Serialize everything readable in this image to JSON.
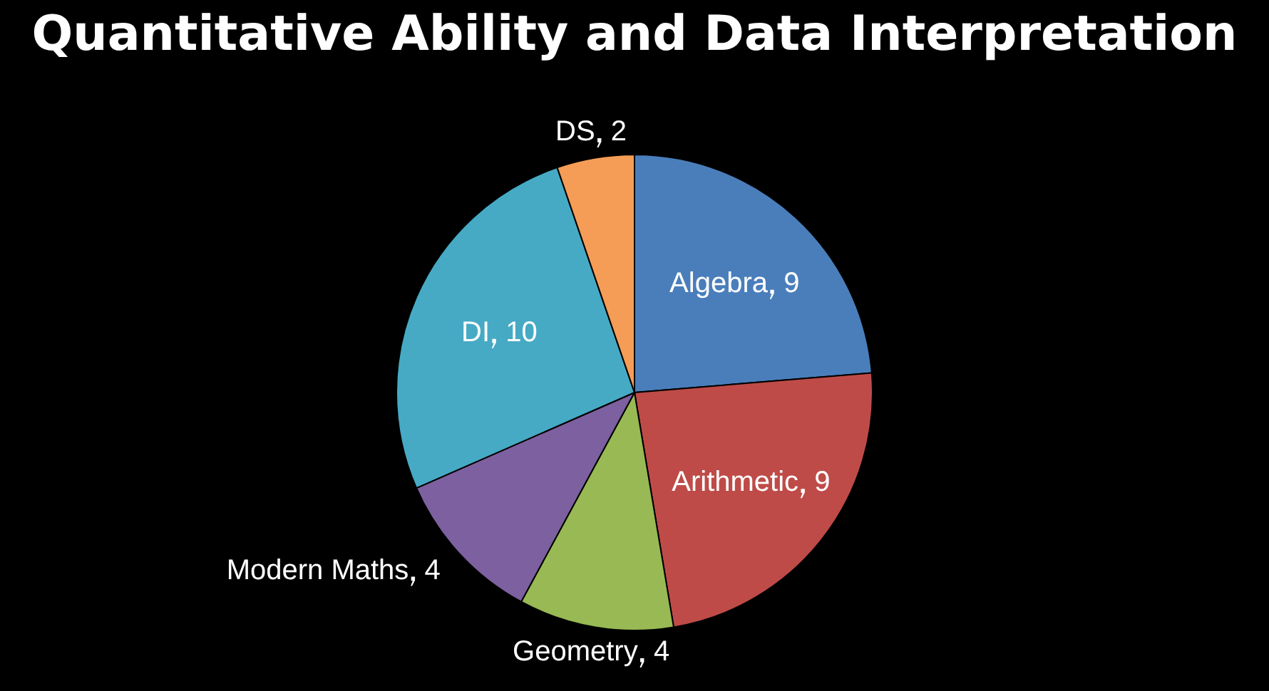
{
  "chart_data": {
    "type": "pie",
    "title": "Quantitative Ability and Data Interpretation",
    "categories": [
      "Algebra",
      "Arithmetic",
      "Geometry",
      "Modern Maths",
      "DI",
      "DS"
    ],
    "values": [
      9,
      9,
      4,
      4,
      10,
      2
    ],
    "colors": [
      "#4a7ebb",
      "#be4b48",
      "#98b954",
      "#7d60a0",
      "#46aac5",
      "#f59d56"
    ],
    "data_labels": true,
    "legend": false
  }
}
